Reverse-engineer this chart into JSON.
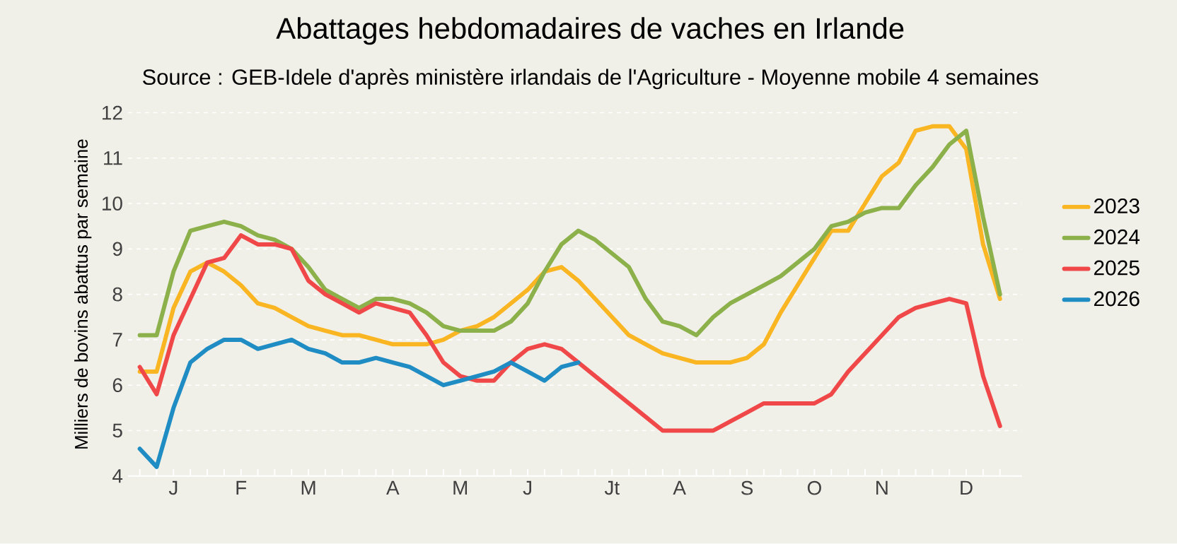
{
  "chart_data": {
    "type": "line",
    "title": "Abattages hebdomadaires de vaches en Irlande",
    "subtitle": "Source : GEB-Idele d'après ministère irlandais de l'Agriculture - Moyenne mobile 4 semaines",
    "ylabel": "Milliers de bovins abattus par semaine",
    "categories": [
      null,
      null,
      "J",
      null,
      null,
      null,
      "F",
      null,
      null,
      null,
      "M",
      null,
      null,
      null,
      null,
      "A",
      null,
      null,
      null,
      "M",
      null,
      null,
      null,
      "J",
      null,
      null,
      null,
      null,
      "Jt",
      null,
      null,
      null,
      "A",
      null,
      null,
      null,
      "S",
      null,
      null,
      null,
      "O",
      null,
      null,
      null,
      "N",
      null,
      null,
      null,
      null,
      "D",
      null,
      null
    ],
    "ylim": [
      4,
      12
    ],
    "yticks": [
      4,
      5,
      6,
      7,
      8,
      9,
      10,
      11,
      12
    ],
    "grid": "y",
    "legend": "right",
    "line_style": "solid",
    "marker": "none",
    "series": [
      {
        "name": "2023",
        "color": "#f9b522",
        "values": [
          6.3,
          6.3,
          7.7,
          8.5,
          8.7,
          8.5,
          8.2,
          7.8,
          7.7,
          7.5,
          7.3,
          7.2,
          7.1,
          7.1,
          7.0,
          6.9,
          6.9,
          6.9,
          7.0,
          7.2,
          7.3,
          7.5,
          7.8,
          8.1,
          8.5,
          8.6,
          8.3,
          7.9,
          7.5,
          7.1,
          6.9,
          6.7,
          6.6,
          6.5,
          6.5,
          6.5,
          6.6,
          6.9,
          7.6,
          8.2,
          8.8,
          9.4,
          9.4,
          10.0,
          10.6,
          10.9,
          11.6,
          11.7,
          11.7,
          11.2,
          9.1,
          7.9
        ]
      },
      {
        "name": "2024",
        "color": "#8cb04a",
        "values": [
          7.1,
          7.1,
          8.5,
          9.4,
          9.5,
          9.6,
          9.5,
          9.3,
          9.2,
          9.0,
          8.6,
          8.1,
          7.9,
          7.7,
          7.9,
          7.9,
          7.8,
          7.6,
          7.3,
          7.2,
          7.2,
          7.2,
          7.4,
          7.8,
          8.5,
          9.1,
          9.4,
          9.2,
          8.9,
          8.6,
          7.9,
          7.4,
          7.3,
          7.1,
          7.5,
          7.8,
          8.0,
          8.2,
          8.4,
          8.7,
          9.0,
          9.5,
          9.6,
          9.8,
          9.9,
          9.9,
          10.4,
          10.8,
          11.3,
          11.6,
          9.7,
          8.0
        ]
      },
      {
        "name": "2025",
        "color": "#f04848",
        "values": [
          6.4,
          5.8,
          7.1,
          7.9,
          8.7,
          8.8,
          9.3,
          9.1,
          9.1,
          9.0,
          8.3,
          8.0,
          7.8,
          7.6,
          7.8,
          7.7,
          7.6,
          7.1,
          6.5,
          6.2,
          6.1,
          6.1,
          6.5,
          6.8,
          6.9,
          6.8,
          6.5,
          6.2,
          5.9,
          5.6,
          5.3,
          5.0,
          5.0,
          5.0,
          5.0,
          5.2,
          5.4,
          5.6,
          5.6,
          5.6,
          5.6,
          5.8,
          6.3,
          6.7,
          7.1,
          7.5,
          7.7,
          7.8,
          7.9,
          7.8,
          6.2,
          5.1
        ]
      },
      {
        "name": "2026",
        "color": "#1f8cc4",
        "values": [
          4.6,
          4.2,
          5.5,
          6.5,
          6.8,
          7.0,
          7.0,
          6.8,
          6.9,
          7.0,
          6.8,
          6.7,
          6.5,
          6.5,
          6.6,
          6.5,
          6.4,
          6.2,
          6.0,
          6.1,
          6.2,
          6.3,
          6.5,
          6.3,
          6.1,
          6.4,
          6.5,
          null,
          null,
          null,
          null,
          null,
          null,
          null,
          null,
          null,
          null,
          null,
          null,
          null,
          null,
          null,
          null,
          null,
          null,
          null,
          null,
          null,
          null,
          null,
          null,
          null
        ]
      }
    ]
  }
}
